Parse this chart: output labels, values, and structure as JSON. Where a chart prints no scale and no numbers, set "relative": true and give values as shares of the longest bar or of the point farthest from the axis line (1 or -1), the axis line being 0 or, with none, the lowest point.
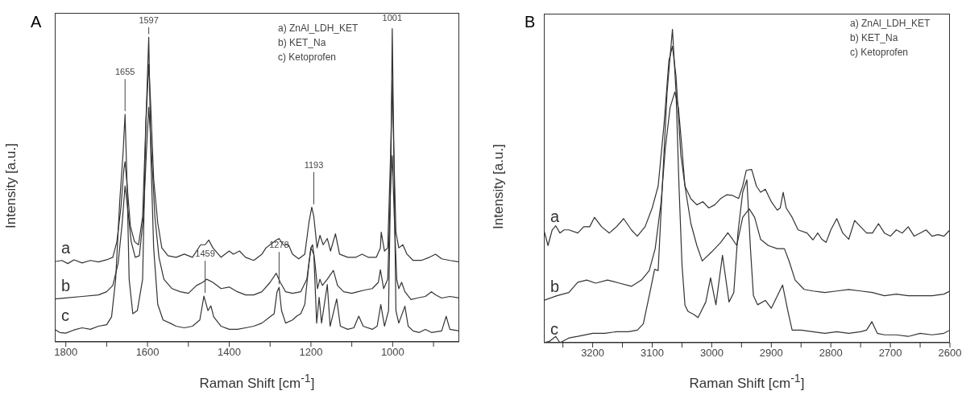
{
  "chart_data": [
    {
      "type": "line",
      "title": "A",
      "xlabel": "Raman Shift [cm$^{-1}$]",
      "ylabel": "Intensity [a.u.]",
      "relative": true,
      "tick_labels": "x",
      "xlim": [
        1827,
        837
      ],
      "xticks": [
        1800,
        {
          "value": 1700,
          "label": null
        },
        1600,
        {
          "value": 1500,
          "label": null
        },
        1400,
        {
          "value": 1300,
          "label": null
        },
        1200,
        {
          "value": 1100,
          "label": null
        },
        1000,
        {
          "value": 900,
          "label": null
        }
      ],
      "annotations": [
        "a) ZnAl_LDH_KET",
        "b) KET_Na",
        "c) Ketoprofen",
        {
          "text": "1655",
          "x": 1655,
          "y": 0.726
        },
        {
          "text": "1597",
          "x": 1597,
          "y": 0.972
        },
        {
          "text": "1459",
          "x": 1459,
          "y": 0.146
        },
        {
          "text": "1278",
          "x": 1278,
          "y": 0.174
        },
        {
          "text": "1193",
          "x": 1193,
          "y": 0.429
        },
        {
          "text": "1001",
          "x": 1001,
          "y": 1.0
        }
      ],
      "series": [
        {
          "name": "a",
          "color": "#333333",
          "x": [
            1827,
            1810,
            1795,
            1780,
            1760,
            1740,
            1720,
            1700,
            1685,
            1675,
            1665,
            1658,
            1655,
            1650,
            1642,
            1632,
            1622,
            1612,
            1604,
            1597,
            1592,
            1585,
            1575,
            1565,
            1550,
            1530,
            1510,
            1490,
            1470,
            1459,
            1450,
            1440,
            1420,
            1400,
            1390,
            1375,
            1360,
            1340,
            1320,
            1310,
            1300,
            1285,
            1278,
            1268,
            1255,
            1245,
            1230,
            1215,
            1205,
            1198,
            1193,
            1185,
            1178,
            1170,
            1160,
            1152,
            1140,
            1130,
            1110,
            1090,
            1075,
            1060,
            1040,
            1030,
            1028,
            1020,
            1012,
            1005,
            1001,
            997,
            992,
            985,
            975,
            965,
            950,
            930,
            910,
            895,
            880,
            860,
            837
          ],
          "values": [
            0.256,
            0.26,
            0.25,
            0.262,
            0.252,
            0.26,
            0.255,
            0.262,
            0.27,
            0.32,
            0.43,
            0.55,
            0.575,
            0.5,
            0.37,
            0.32,
            0.31,
            0.4,
            0.7,
            0.886,
            0.75,
            0.52,
            0.38,
            0.3,
            0.275,
            0.27,
            0.28,
            0.27,
            0.31,
            0.31,
            0.325,
            0.3,
            0.27,
            0.29,
            0.28,
            0.29,
            0.27,
            0.26,
            0.28,
            0.3,
            0.31,
            0.325,
            0.33,
            0.31,
            0.31,
            0.28,
            0.265,
            0.28,
            0.38,
            0.43,
            0.4,
            0.3,
            0.34,
            0.31,
            0.33,
            0.29,
            0.345,
            0.28,
            0.27,
            0.27,
            0.28,
            0.27,
            0.27,
            0.3,
            0.35,
            0.29,
            0.3,
            0.6,
            0.832,
            0.6,
            0.35,
            0.3,
            0.31,
            0.28,
            0.26,
            0.26,
            0.27,
            0.28,
            0.265,
            0.26,
            0.255
          ]
        },
        {
          "name": "b",
          "color": "#333333",
          "x": [
            1827,
            1800,
            1760,
            1720,
            1700,
            1685,
            1672,
            1662,
            1655,
            1648,
            1640,
            1630,
            1620,
            1610,
            1603,
            1597,
            1590,
            1582,
            1572,
            1560,
            1540,
            1520,
            1500,
            1480,
            1465,
            1455,
            1440,
            1420,
            1400,
            1380,
            1360,
            1340,
            1320,
            1300,
            1285,
            1275,
            1262,
            1245,
            1225,
            1210,
            1200,
            1196,
            1190,
            1184,
            1178,
            1172,
            1160,
            1145,
            1135,
            1120,
            1100,
            1085,
            1070,
            1050,
            1035,
            1030,
            1022,
            1012,
            1005,
            1001,
            996,
            990,
            985,
            978,
            970,
            955,
            940,
            920,
            905,
            895,
            880,
            860,
            837
          ],
          "values": [
            0.137,
            0.14,
            0.145,
            0.15,
            0.16,
            0.18,
            0.25,
            0.38,
            0.498,
            0.42,
            0.32,
            0.27,
            0.275,
            0.4,
            0.6,
            0.749,
            0.6,
            0.4,
            0.27,
            0.2,
            0.17,
            0.16,
            0.155,
            0.18,
            0.19,
            0.2,
            0.19,
            0.17,
            0.175,
            0.16,
            0.15,
            0.15,
            0.16,
            0.19,
            0.219,
            0.19,
            0.16,
            0.155,
            0.16,
            0.2,
            0.3,
            0.31,
            0.25,
            0.17,
            0.2,
            0.18,
            0.2,
            0.228,
            0.18,
            0.16,
            0.155,
            0.16,
            0.165,
            0.17,
            0.19,
            0.23,
            0.17,
            0.2,
            0.5,
            0.594,
            0.4,
            0.2,
            0.17,
            0.19,
            0.16,
            0.135,
            0.14,
            0.145,
            0.16,
            0.15,
            0.14,
            0.145,
            0.14
          ]
        },
        {
          "name": "c",
          "color": "#333333",
          "x": [
            1827,
            1815,
            1800,
            1780,
            1760,
            1740,
            1720,
            1700,
            1688,
            1678,
            1668,
            1660,
            1655,
            1650,
            1645,
            1636,
            1625,
            1612,
            1604,
            1597,
            1592,
            1585,
            1575,
            1562,
            1545,
            1530,
            1510,
            1490,
            1472,
            1462,
            1452,
            1445,
            1438,
            1420,
            1400,
            1380,
            1360,
            1340,
            1320,
            1300,
            1290,
            1283,
            1278,
            1272,
            1262,
            1245,
            1235,
            1225,
            1215,
            1205,
            1200,
            1193,
            1186,
            1180,
            1174,
            1160,
            1153,
            1137,
            1128,
            1110,
            1095,
            1083,
            1072,
            1050,
            1038,
            1029,
            1020,
            1010,
            1004,
            1001,
            997,
            992,
            985,
            970,
            962,
            950,
            935,
            920,
            905,
            880,
            869,
            860,
            837
          ],
          "values": [
            0.04,
            0.03,
            0.028,
            0.038,
            0.045,
            0.04,
            0.05,
            0.055,
            0.08,
            0.2,
            0.45,
            0.6,
            0.726,
            0.5,
            0.2,
            0.09,
            0.1,
            0.2,
            0.7,
            0.972,
            0.6,
            0.3,
            0.12,
            0.07,
            0.06,
            0.05,
            0.045,
            0.05,
            0.07,
            0.146,
            0.1,
            0.115,
            0.08,
            0.05,
            0.04,
            0.04,
            0.045,
            0.05,
            0.06,
            0.08,
            0.09,
            0.16,
            0.174,
            0.1,
            0.06,
            0.07,
            0.082,
            0.09,
            0.12,
            0.25,
            0.3,
            0.28,
            0.06,
            0.142,
            0.06,
            0.183,
            0.05,
            0.137,
            0.05,
            0.04,
            0.045,
            0.082,
            0.05,
            0.04,
            0.05,
            0.119,
            0.05,
            0.1,
            0.6,
            1.0,
            0.6,
            0.1,
            0.06,
            0.114,
            0.05,
            0.035,
            0.03,
            0.04,
            0.03,
            0.035,
            0.082,
            0.04,
            0.035
          ]
        }
      ]
    },
    {
      "type": "line",
      "title": "B",
      "xlabel": "Raman Shift [cm$^{-1}$]",
      "ylabel": "Intensity [a.u.]",
      "relative": true,
      "tick_labels": "x",
      "xlim": [
        3282,
        2600
      ],
      "xticks": [
        {
          "value": 3250,
          "label": null
        },
        3200,
        {
          "value": 3150,
          "label": null
        },
        3100,
        {
          "value": 3050,
          "label": null
        },
        3000,
        {
          "value": 2950,
          "label": null
        },
        2900,
        {
          "value": 2850,
          "label": null
        },
        2800,
        {
          "value": 2750,
          "label": null
        },
        2700,
        {
          "value": 2650,
          "label": null
        },
        2600
      ],
      "annotations": [
        "a) ZnAl_LDH_KET",
        "b) KET_Na",
        "c) Ketoprofen"
      ],
      "series": [
        {
          "name": "a",
          "color": "#333333",
          "x": [
            3282,
            3275,
            3268,
            3262,
            3255,
            3248,
            3240,
            3225,
            3215,
            3205,
            3197,
            3185,
            3172,
            3160,
            3148,
            3135,
            3125,
            3112,
            3100,
            3090,
            3080,
            3072,
            3066,
            3060,
            3052,
            3045,
            3035,
            3025,
            3015,
            3005,
            2995,
            2985,
            2975,
            2965,
            2955,
            2948,
            2942,
            2933,
            2925,
            2918,
            2910,
            2900,
            2890,
            2885,
            2880,
            2875,
            2865,
            2855,
            2840,
            2830,
            2822,
            2815,
            2808,
            2800,
            2790,
            2780,
            2770,
            2760,
            2750,
            2740,
            2730,
            2720,
            2710,
            2700,
            2690,
            2680,
            2670,
            2660,
            2650,
            2640,
            2630,
            2620,
            2610,
            2600
          ],
          "values": [
            0.36,
            0.31,
            0.36,
            0.373,
            0.35,
            0.36,
            0.36,
            0.35,
            0.37,
            0.37,
            0.4,
            0.37,
            0.35,
            0.37,
            0.396,
            0.36,
            0.34,
            0.37,
            0.43,
            0.5,
            0.7,
            0.9,
            0.946,
            0.85,
            0.6,
            0.5,
            0.459,
            0.44,
            0.45,
            0.43,
            0.44,
            0.46,
            0.472,
            0.47,
            0.46,
            0.5,
            0.55,
            0.553,
            0.5,
            0.48,
            0.49,
            0.45,
            0.423,
            0.43,
            0.48,
            0.43,
            0.4,
            0.36,
            0.35,
            0.328,
            0.35,
            0.33,
            0.32,
            0.36,
            0.396,
            0.35,
            0.33,
            0.39,
            0.37,
            0.35,
            0.35,
            0.38,
            0.35,
            0.34,
            0.36,
            0.35,
            0.37,
            0.34,
            0.35,
            0.36,
            0.34,
            0.345,
            0.34,
            0.36
          ]
        },
        {
          "name": "b",
          "color": "#333333",
          "x": [
            3282,
            3260,
            3240,
            3225,
            3210,
            3195,
            3175,
            3155,
            3135,
            3118,
            3105,
            3095,
            3085,
            3078,
            3070,
            3062,
            3056,
            3050,
            3045,
            3035,
            3025,
            3016,
            3000,
            2985,
            2973,
            2965,
            2958,
            2948,
            2937,
            2928,
            2918,
            2905,
            2890,
            2878,
            2870,
            2860,
            2845,
            2830,
            2810,
            2790,
            2770,
            2750,
            2730,
            2710,
            2690,
            2670,
            2650,
            2630,
            2610,
            2600
          ],
          "values": [
            0.135,
            0.15,
            0.16,
            0.193,
            0.2,
            0.19,
            0.2,
            0.19,
            0.18,
            0.2,
            0.23,
            0.3,
            0.45,
            0.62,
            0.75,
            0.8,
            0.75,
            0.62,
            0.5,
            0.38,
            0.31,
            0.261,
            0.29,
            0.32,
            0.351,
            0.33,
            0.31,
            0.4,
            0.427,
            0.4,
            0.33,
            0.31,
            0.3,
            0.3,
            0.26,
            0.2,
            0.17,
            0.165,
            0.16,
            0.165,
            0.17,
            0.165,
            0.16,
            0.15,
            0.155,
            0.15,
            0.15,
            0.15,
            0.155,
            0.165
          ]
        },
        {
          "name": "c",
          "color": "#333333",
          "x": [
            3282,
            3272,
            3262,
            3255,
            3240,
            3225,
            3200,
            3180,
            3160,
            3140,
            3125,
            3115,
            3105,
            3096,
            3090,
            3083,
            3075,
            3066,
            3060,
            3055,
            3050,
            3045,
            3040,
            3030,
            3023,
            3010,
            3002,
            2993,
            2982,
            2971,
            2963,
            2956,
            2948,
            2941,
            2935,
            2930,
            2923,
            2910,
            2900,
            2881,
            2872,
            2865,
            2850,
            2830,
            2810,
            2790,
            2770,
            2750,
            2740,
            2731,
            2722,
            2710,
            2690,
            2670,
            2650,
            2630,
            2610,
            2600
          ],
          "values": [
            0.0,
            0.005,
            0.02,
            0.0,
            0.015,
            0.02,
            0.03,
            0.03,
            0.035,
            0.035,
            0.04,
            0.06,
            0.15,
            0.234,
            0.23,
            0.5,
            0.8,
            1.0,
            0.8,
            0.5,
            0.25,
            0.12,
            0.1,
            0.09,
            0.08,
            0.13,
            0.207,
            0.121,
            0.279,
            0.13,
            0.16,
            0.351,
            0.48,
            0.52,
            0.3,
            0.15,
            0.121,
            0.135,
            0.11,
            0.184,
            0.1,
            0.04,
            0.04,
            0.035,
            0.03,
            0.035,
            0.03,
            0.035,
            0.04,
            0.067,
            0.03,
            0.025,
            0.025,
            0.02,
            0.03,
            0.025,
            0.03,
            0.04
          ]
        }
      ]
    }
  ]
}
